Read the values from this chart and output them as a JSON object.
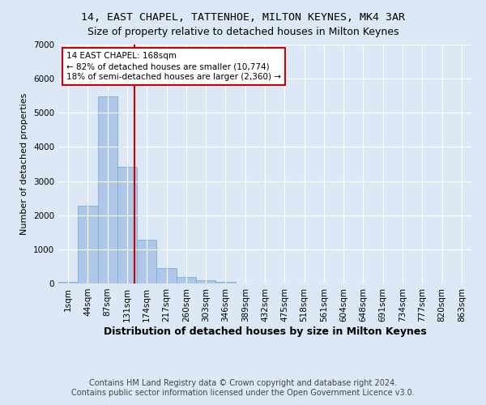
{
  "title": "14, EAST CHAPEL, TATTENHOE, MILTON KEYNES, MK4 3AR",
  "subtitle": "Size of property relative to detached houses in Milton Keynes",
  "xlabel": "Distribution of detached houses by size in Milton Keynes",
  "ylabel": "Number of detached properties",
  "bar_labels": [
    "1sqm",
    "44sqm",
    "87sqm",
    "131sqm",
    "174sqm",
    "217sqm",
    "260sqm",
    "303sqm",
    "346sqm",
    "389sqm",
    "432sqm",
    "475sqm",
    "518sqm",
    "561sqm",
    "604sqm",
    "648sqm",
    "691sqm",
    "734sqm",
    "777sqm",
    "820sqm",
    "863sqm"
  ],
  "bar_values": [
    50,
    2270,
    5470,
    3420,
    1290,
    460,
    195,
    90,
    50,
    10,
    0,
    0,
    0,
    0,
    0,
    0,
    0,
    0,
    0,
    0,
    0
  ],
  "bar_color": "#aec6e8",
  "bar_edgecolor": "#7aadd4",
  "property_line_x": 3.88,
  "property_line_color": "#cc0000",
  "annotation_text": "14 EAST CHAPEL: 168sqm\n← 82% of detached houses are smaller (10,774)\n18% of semi-detached houses are larger (2,360) →",
  "annotation_box_color": "#ffffff",
  "annotation_box_edgecolor": "#cc0000",
  "ylim": [
    0,
    7000
  ],
  "background_color": "#dce8f5",
  "footer": "Contains HM Land Registry data © Crown copyright and database right 2024.\nContains public sector information licensed under the Open Government Licence v3.0.",
  "title_fontsize": 9.5,
  "xlabel_fontsize": 9,
  "ylabel_fontsize": 8,
  "tick_fontsize": 7.5,
  "footer_fontsize": 7
}
